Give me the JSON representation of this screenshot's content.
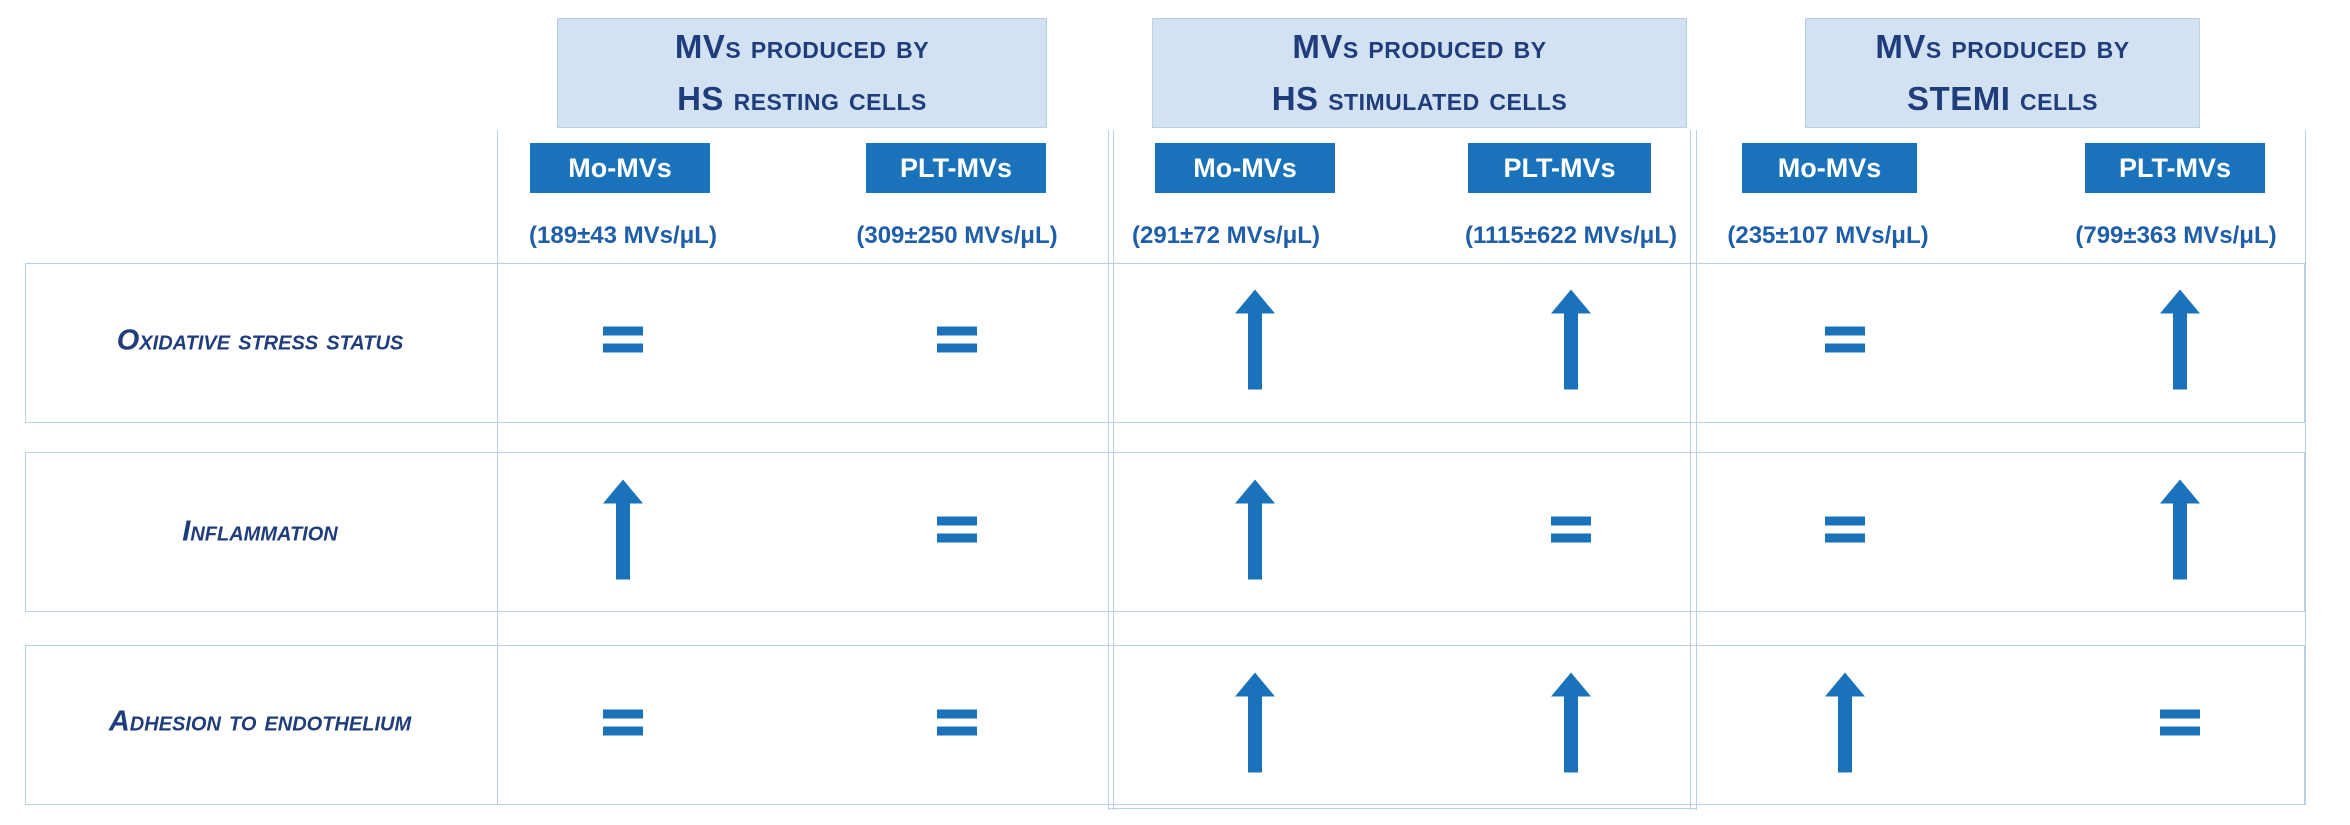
{
  "groups": [
    {
      "line1": "MVs produced by",
      "line2": "HS resting cells"
    },
    {
      "line1": "MVs produced by",
      "line2": "HS stimulated cells"
    },
    {
      "line1": "MVs produced by",
      "line2": "STEMI cells"
    }
  ],
  "columns": [
    {
      "tag": "Mo-MVs",
      "concentration": "(189±43 MVs/μL)"
    },
    {
      "tag": "PLT-MVs",
      "concentration": "(309±250 MVs/μL)"
    },
    {
      "tag": "Mo-MVs",
      "concentration": "(291±72 MVs/μL)"
    },
    {
      "tag": "PLT-MVs",
      "concentration": "(1115±622 MVs/μL)"
    },
    {
      "tag": "Mo-MVs",
      "concentration": "(235±107 MVs/μL)"
    },
    {
      "tag": "PLT-MVs",
      "concentration": "(799±363 MVs/μL)"
    }
  ],
  "rows": [
    {
      "label": "Oxidative stress status",
      "effects": [
        "equal",
        "equal",
        "up",
        "up",
        "equal",
        "up"
      ]
    },
    {
      "label": "Inflammation",
      "effects": [
        "up",
        "equal",
        "up",
        "equal",
        "equal",
        "up"
      ]
    },
    {
      "label": "Adhesion to endothelium",
      "effects": [
        "equal",
        "equal",
        "up",
        "up",
        "up",
        "equal"
      ]
    }
  ],
  "colors": {
    "arrow": "#1a73ba",
    "header_bg": "#d3e2f3",
    "tag_bg": "#1a73ba",
    "border": "#b9d0e8"
  }
}
